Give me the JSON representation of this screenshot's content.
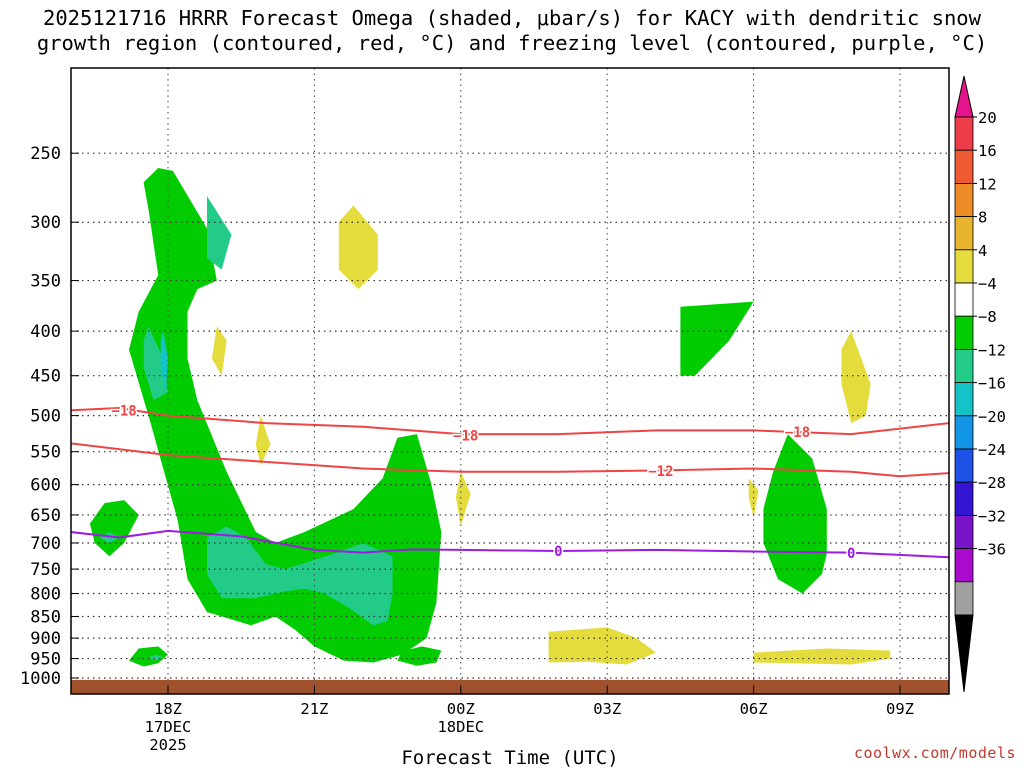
{
  "title": {
    "line1": "2025121716 HRRR Forecast Omega (shaded, μbar/s) for KACY with dendritic snow",
    "line2": "growth region (contoured, red, °C) and freezing level (contoured, purple, °C)"
  },
  "credit": "coolwx.com/models",
  "chart_data": {
    "type": "time-height cross section (filled contours)",
    "xlabel": "Forecast Time (UTC)",
    "ylabel": "Pressure (mb)",
    "x_range_hours": [
      -2.0,
      16.0
    ],
    "x_ticks": [
      {
        "h": 0,
        "lines": [
          "18Z",
          "17DEC",
          "2025"
        ]
      },
      {
        "h": 3,
        "lines": [
          "21Z"
        ]
      },
      {
        "h": 6,
        "lines": [
          "00Z",
          "18DEC"
        ]
      },
      {
        "h": 9,
        "lines": [
          "03Z"
        ]
      },
      {
        "h": 12,
        "lines": [
          "06Z"
        ]
      },
      {
        "h": 15,
        "lines": [
          "09Z"
        ]
      }
    ],
    "y_range_mb": [
      200,
      1025
    ],
    "y_ticks": [
      250,
      300,
      350,
      400,
      450,
      500,
      550,
      600,
      650,
      700,
      750,
      800,
      850,
      900,
      950,
      1000
    ],
    "colorbar": {
      "labels": [
        "20",
        "16",
        "12",
        "8",
        "4",
        "−4",
        "−8",
        "−12",
        "−16",
        "−20",
        "−24",
        "−28",
        "−32",
        "−36"
      ],
      "colors": [
        "#ee3c4a",
        "#f05a32",
        "#ee8c28",
        "#e6b42d",
        "#e4dc3c",
        "#ffffff",
        "#00cc00",
        "#22cc88",
        "#14c3c8",
        "#1496e6",
        "#1e50e6",
        "#3214d2",
        "#7814c8",
        "#aa0acc",
        "#a0a0a0"
      ],
      "top_arrow_color": "#e6148c",
      "bottom_arrow_color": "#000000"
    },
    "omega_regions": [
      {
        "color": "#00cc00",
        "level": "-4 to -8",
        "points": [
          [
            0.1,
            262
          ],
          [
            0.8,
            305
          ],
          [
            1.0,
            350
          ],
          [
            0.6,
            358
          ],
          [
            0.4,
            380
          ],
          [
            0.4,
            430
          ],
          [
            0.6,
            480
          ],
          [
            1.2,
            580
          ],
          [
            1.8,
            680
          ],
          [
            2.2,
            700
          ],
          [
            2.8,
            680
          ],
          [
            3.8,
            640
          ],
          [
            4.4,
            590
          ],
          [
            4.7,
            530
          ],
          [
            5.1,
            525
          ],
          [
            5.4,
            600
          ],
          [
            5.6,
            680
          ],
          [
            5.5,
            820
          ],
          [
            5.3,
            900
          ],
          [
            4.8,
            940
          ],
          [
            4.5,
            950
          ],
          [
            4.2,
            960
          ],
          [
            3.6,
            955
          ],
          [
            3.0,
            920
          ],
          [
            2.6,
            880
          ],
          [
            2.2,
            850
          ],
          [
            1.7,
            870
          ],
          [
            0.8,
            840
          ],
          [
            0.4,
            770
          ],
          [
            0.2,
            660
          ],
          [
            -0.4,
            500
          ],
          [
            -0.8,
            420
          ],
          [
            -0.6,
            380
          ],
          [
            -0.2,
            345
          ],
          [
            -0.4,
            290
          ],
          [
            -0.5,
            270
          ],
          [
            -0.2,
            260
          ]
        ]
      },
      {
        "color": "#00cc00",
        "level": "-4 to -8",
        "points": [
          [
            -1.3,
            630
          ],
          [
            -0.9,
            625
          ],
          [
            -0.6,
            650
          ],
          [
            -0.9,
            700
          ],
          [
            -1.2,
            725
          ],
          [
            -1.5,
            700
          ],
          [
            -1.6,
            665
          ]
        ]
      },
      {
        "color": "#00cc00",
        "level": "-4 to -8",
        "points": [
          [
            -0.6,
            925
          ],
          [
            -0.2,
            920
          ],
          [
            0.0,
            940
          ],
          [
            -0.2,
            962
          ],
          [
            -0.5,
            970
          ],
          [
            -0.8,
            955
          ]
        ]
      },
      {
        "color": "#00cc00",
        "level": "-4 to -8",
        "points": [
          [
            5.2,
            920
          ],
          [
            5.6,
            930
          ],
          [
            5.5,
            960
          ],
          [
            5.1,
            968
          ],
          [
            4.7,
            955
          ],
          [
            4.8,
            932
          ]
        ]
      },
      {
        "color": "#00cc00",
        "level": "-4 to -8",
        "points": [
          [
            10.5,
            375
          ],
          [
            12.0,
            370
          ],
          [
            11.5,
            410
          ],
          [
            10.8,
            450
          ],
          [
            10.5,
            450
          ],
          [
            10.5,
            420
          ]
        ]
      },
      {
        "color": "#00cc00",
        "level": "-4 to -8",
        "points": [
          [
            12.7,
            525
          ],
          [
            13.2,
            560
          ],
          [
            13.5,
            640
          ],
          [
            13.5,
            720
          ],
          [
            13.4,
            760
          ],
          [
            13.0,
            800
          ],
          [
            12.5,
            770
          ],
          [
            12.2,
            700
          ],
          [
            12.2,
            640
          ],
          [
            12.4,
            580
          ]
        ]
      },
      {
        "color": "#22cc88",
        "level": "-8 to -12",
        "points": [
          [
            0.8,
            690
          ],
          [
            1.2,
            670
          ],
          [
            1.6,
            690
          ],
          [
            2.0,
            740
          ],
          [
            2.4,
            750
          ],
          [
            3.4,
            720
          ],
          [
            4.0,
            700
          ],
          [
            4.6,
            725
          ],
          [
            4.6,
            800
          ],
          [
            4.5,
            860
          ],
          [
            4.2,
            870
          ],
          [
            3.7,
            830
          ],
          [
            3.2,
            800
          ],
          [
            2.8,
            790
          ],
          [
            2.4,
            795
          ],
          [
            1.8,
            810
          ],
          [
            1.1,
            810
          ],
          [
            0.8,
            760
          ]
        ]
      },
      {
        "color": "#22cc88",
        "level": "-8 to -12",
        "points": [
          [
            0.8,
            280
          ],
          [
            1.3,
            310
          ],
          [
            1.1,
            340
          ],
          [
            0.8,
            330
          ],
          [
            0.8,
            300
          ]
        ]
      },
      {
        "color": "#22cc88",
        "level": "-8 to -12",
        "points": [
          [
            -0.4,
            395
          ],
          [
            -0.1,
            430
          ],
          [
            0.0,
            470
          ],
          [
            -0.3,
            480
          ],
          [
            -0.5,
            440
          ],
          [
            -0.5,
            410
          ]
        ]
      },
      {
        "color": "#22cc88",
        "level": "-8 to -12",
        "points": [
          [
            -1.2,
            680
          ],
          [
            -1.0,
            690
          ],
          [
            -1.2,
            700
          ],
          [
            -1.4,
            690
          ]
        ]
      },
      {
        "color": "#22cc88",
        "level": "-8 to -12",
        "points": [
          [
            -0.25,
            940
          ],
          [
            -0.1,
            947
          ],
          [
            -0.25,
            955
          ],
          [
            -0.4,
            947
          ]
        ]
      },
      {
        "color": "#14c3c8",
        "level": "-12 to -16",
        "points": [
          [
            -0.1,
            400
          ],
          [
            0.0,
            430
          ],
          [
            -0.05,
            470
          ],
          [
            -0.15,
            440
          ],
          [
            -0.15,
            410
          ]
        ]
      },
      {
        "color": "#e4dc3c",
        "level": "4 to 8",
        "points": [
          [
            3.8,
            287
          ],
          [
            4.3,
            310
          ],
          [
            4.3,
            340
          ],
          [
            3.9,
            358
          ],
          [
            3.5,
            340
          ],
          [
            3.5,
            300
          ]
        ]
      },
      {
        "color": "#e4dc3c",
        "level": "4 to 8",
        "points": [
          [
            1.0,
            395
          ],
          [
            1.2,
            410
          ],
          [
            1.1,
            450
          ],
          [
            0.9,
            430
          ]
        ]
      },
      {
        "color": "#e4dc3c",
        "level": "4 to 8",
        "points": [
          [
            1.9,
            500
          ],
          [
            2.1,
            540
          ],
          [
            1.9,
            570
          ],
          [
            1.8,
            540
          ]
        ]
      },
      {
        "color": "#e4dc3c",
        "level": "4 to 8",
        "points": [
          [
            6.0,
            580
          ],
          [
            6.2,
            615
          ],
          [
            6.0,
            670
          ],
          [
            5.9,
            620
          ]
        ]
      },
      {
        "color": "#e4dc3c",
        "level": "4 to 8",
        "points": [
          [
            11.9,
            590
          ],
          [
            12.1,
            610
          ],
          [
            12.0,
            655
          ],
          [
            11.9,
            620
          ]
        ]
      },
      {
        "color": "#e4dc3c",
        "level": "4 to 8",
        "points": [
          [
            14.0,
            400
          ],
          [
            14.4,
            460
          ],
          [
            14.3,
            500
          ],
          [
            14.0,
            510
          ],
          [
            13.8,
            460
          ],
          [
            13.8,
            420
          ]
        ]
      },
      {
        "color": "#e4dc3c",
        "level": "4 to 8",
        "points": [
          [
            7.8,
            885
          ],
          [
            9.0,
            875
          ],
          [
            9.6,
            900
          ],
          [
            10.0,
            935
          ],
          [
            9.4,
            965
          ],
          [
            8.6,
            958
          ],
          [
            7.8,
            960
          ],
          [
            7.8,
            910
          ]
        ]
      },
      {
        "color": "#e4dc3c",
        "level": "4 to 8",
        "points": [
          [
            12.0,
            935
          ],
          [
            13.5,
            925
          ],
          [
            14.8,
            930
          ],
          [
            14.8,
            950
          ],
          [
            14.0,
            965
          ],
          [
            12.0,
            960
          ]
        ]
      }
    ],
    "contours": [
      {
        "name": "DGZ -18",
        "color": "#ef4444",
        "label": "−18",
        "points": [
          [
            -2.0,
            493
          ],
          [
            -1.0,
            490
          ],
          [
            0,
            500
          ],
          [
            2.0,
            510
          ],
          [
            4.0,
            515
          ],
          [
            6.0,
            525
          ],
          [
            8.0,
            525
          ],
          [
            10.0,
            520
          ],
          [
            12.0,
            520
          ],
          [
            14.0,
            525
          ],
          [
            16.0,
            510
          ]
        ],
        "label_positions": [
          [
            -0.9,
            493
          ],
          [
            6.1,
            527
          ],
          [
            12.9,
            522
          ]
        ]
      },
      {
        "name": "DGZ -12",
        "color": "#ef4444",
        "label": "−12",
        "points": [
          [
            -2.0,
            538
          ],
          [
            0,
            555
          ],
          [
            2.0,
            565
          ],
          [
            4.0,
            575
          ],
          [
            6.0,
            580
          ],
          [
            8.0,
            580
          ],
          [
            10.0,
            578
          ],
          [
            12.0,
            575
          ],
          [
            14.0,
            580
          ],
          [
            15.0,
            587
          ],
          [
            16.0,
            582
          ]
        ],
        "label_positions": [
          [
            10.1,
            579
          ]
        ]
      },
      {
        "name": "Freezing level 0",
        "color": "#9c1ce0",
        "label": "0",
        "points": [
          [
            -2.0,
            680
          ],
          [
            -1.0,
            690
          ],
          [
            0,
            678
          ],
          [
            1.5,
            688
          ],
          [
            3.0,
            713
          ],
          [
            4.0,
            718
          ],
          [
            5.0,
            712
          ],
          [
            6.0,
            713
          ],
          [
            8.0,
            715
          ],
          [
            10.0,
            713
          ],
          [
            12.0,
            716
          ],
          [
            14.0,
            718
          ],
          [
            16.0,
            727
          ]
        ],
        "label_positions": [
          [
            8.0,
            715
          ],
          [
            14.0,
            719
          ]
        ]
      }
    ],
    "terrain": {
      "color": "#a0522d",
      "top_mb": 1005,
      "bottom_mb": 1025
    }
  }
}
